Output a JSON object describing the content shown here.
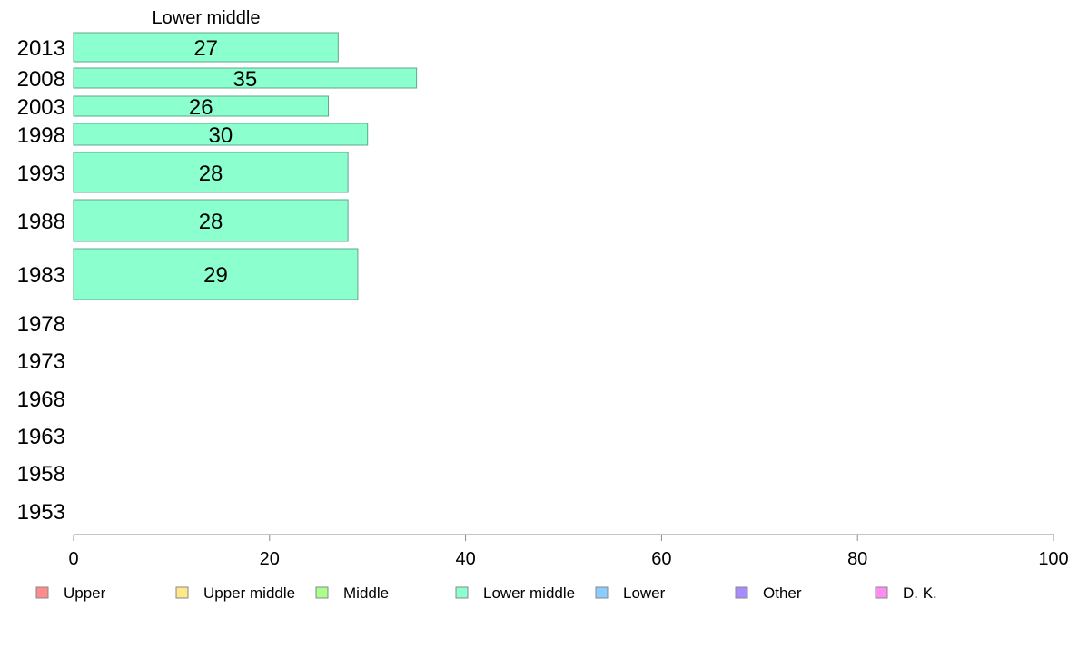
{
  "chart_data": {
    "type": "bar",
    "orientation": "horizontal",
    "title": "Lower middle",
    "categories": [
      "2013",
      "2008",
      "2003",
      "1998",
      "1993",
      "1988",
      "1983",
      "1978",
      "1973",
      "1968",
      "1963",
      "1958",
      "1953"
    ],
    "series": [
      {
        "name": "Lower middle",
        "color": "#8cffcf",
        "values": [
          27,
          35,
          26,
          30,
          28,
          28,
          29,
          null,
          null,
          null,
          null,
          null,
          null
        ]
      }
    ],
    "bar_labels": [
      "27",
      "35",
      "26",
      "30",
      "28",
      "28",
      "29"
    ],
    "xlim": [
      0,
      100
    ],
    "xticks": [
      "0",
      "20",
      "40",
      "60",
      "80",
      "100"
    ],
    "grid": false,
    "legend": {
      "position": "bottom",
      "entries": [
        {
          "label": "Upper",
          "color": "#ff8c8c"
        },
        {
          "label": "Upper middle",
          "color": "#ffe88c"
        },
        {
          "label": "Middle",
          "color": "#a8ff8c"
        },
        {
          "label": "Lower middle",
          "color": "#8cffcf"
        },
        {
          "label": "Lower",
          "color": "#8cccff"
        },
        {
          "label": "Other",
          "color": "#a88cff"
        },
        {
          "label": "D. K.",
          "color": "#ff8cf0"
        }
      ]
    }
  }
}
